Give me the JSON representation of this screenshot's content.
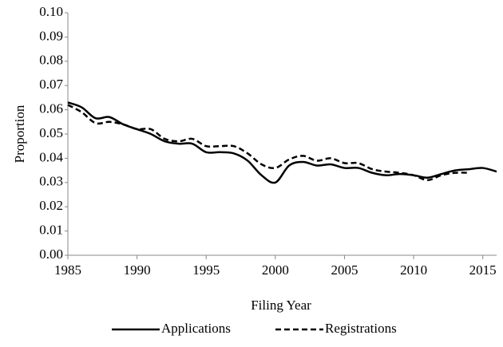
{
  "chart_data": {
    "type": "line",
    "x_label": "Filing Year",
    "y_label": "Proportion",
    "x": [
      1985,
      1986,
      1987,
      1988,
      1989,
      1990,
      1991,
      1992,
      1993,
      1994,
      1995,
      1996,
      1997,
      1998,
      1999,
      2000,
      2001,
      2002,
      2003,
      2004,
      2005,
      2006,
      2007,
      2008,
      2009,
      2010,
      2011,
      2012,
      2013,
      2014,
      2015,
      2016
    ],
    "series": [
      {
        "name": "Applications",
        "color": "#000000",
        "dash": "solid",
        "values": [
          0.063,
          0.061,
          0.0565,
          0.057,
          0.054,
          0.052,
          0.05,
          0.047,
          0.046,
          0.046,
          0.0425,
          0.0425,
          0.042,
          0.039,
          0.033,
          0.03,
          0.037,
          0.0385,
          0.037,
          0.0375,
          0.036,
          0.036,
          0.034,
          0.033,
          0.0335,
          0.033,
          0.032,
          0.0335,
          0.035,
          0.0355,
          0.036,
          0.0345
        ]
      },
      {
        "name": "Registrations",
        "color": "#000000",
        "dash": "dashed",
        "values": [
          0.062,
          0.059,
          0.0545,
          0.055,
          0.054,
          0.052,
          0.052,
          0.048,
          0.047,
          0.048,
          0.045,
          0.045,
          0.045,
          0.042,
          0.0375,
          0.036,
          0.0395,
          0.041,
          0.039,
          0.04,
          0.038,
          0.038,
          0.0355,
          0.0345,
          0.034,
          0.033,
          0.031,
          0.033,
          0.034,
          0.034,
          null,
          null
        ]
      }
    ],
    "xlim": [
      1985,
      2016
    ],
    "xticks": [
      1985,
      1990,
      1995,
      2000,
      2005,
      2010,
      2015
    ],
    "ylim": [
      0,
      0.1
    ],
    "yticks": [
      {
        "value": 0,
        "label": "0.00"
      },
      0.01,
      0.02,
      0.03,
      0.04,
      0.05,
      0.06,
      0.07,
      0.08,
      0.09,
      {
        "value": 0.1,
        "label": "0.10"
      }
    ],
    "grid": false,
    "legend": "bottom"
  }
}
